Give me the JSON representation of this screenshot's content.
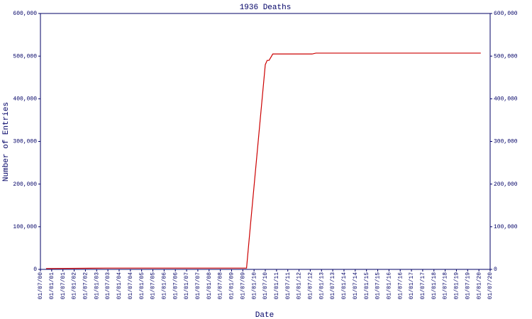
{
  "chart_data": {
    "type": "line",
    "title": "1936 Deaths",
    "x_label": "Date",
    "y_label": "Number of Entries",
    "categories": [
      "01/07/00",
      "01/01/01",
      "01/07/01",
      "01/01/02",
      "01/07/02",
      "01/01/03",
      "01/07/03",
      "01/01/04",
      "01/07/04",
      "01/01/05",
      "01/07/05",
      "01/01/06",
      "01/07/06",
      "01/01/07",
      "01/07/07",
      "01/01/08",
      "01/07/08",
      "01/01/09",
      "01/07/09",
      "01/01/10",
      "01/07/10",
      "01/01/11",
      "01/07/11",
      "01/01/12",
      "01/07/12",
      "01/01/13",
      "01/07/13",
      "01/01/14",
      "01/07/14",
      "01/01/15",
      "01/07/15",
      "01/01/16",
      "01/07/16",
      "01/01/17",
      "01/07/17",
      "01/01/18",
      "01/07/18",
      "01/01/19",
      "01/07/19",
      "01/01/20",
      "01/07/20"
    ],
    "series": [
      {
        "name": "Entries",
        "color": "#cc0000",
        "x": [
          "01/10/00",
          "01/06/03",
          "01/09/09",
          "01/11/09",
          "01/07/10",
          "01/08/10",
          "01/09/10",
          "01/11/10",
          "01/08/12",
          "01/10/12",
          "01/02/20"
        ],
        "values": [
          2000,
          3000,
          3000,
          100000,
          480000,
          490000,
          490000,
          505000,
          505000,
          507000,
          507000
        ]
      }
    ],
    "ylim": [
      0,
      600000
    ],
    "yticks": [
      0,
      {
        "value": 100000,
        "label": "100,000"
      },
      {
        "value": 200000,
        "label": "200,000"
      },
      {
        "value": 300000,
        "label": "300,000"
      },
      {
        "value": 400000,
        "label": "400,000"
      },
      {
        "value": 500000,
        "label": "500,000"
      },
      {
        "value": 600000,
        "label": "600,000"
      }
    ]
  }
}
